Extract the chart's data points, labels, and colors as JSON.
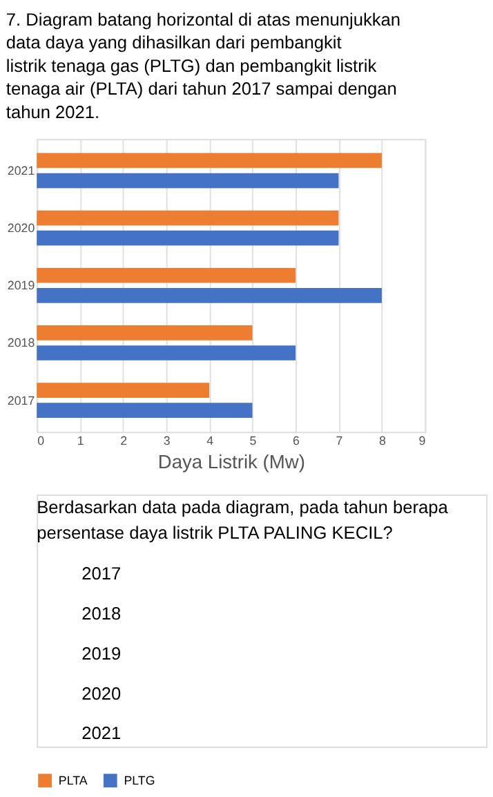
{
  "chart_data": {
    "type": "bar",
    "orientation": "horizontal",
    "title": "7. Diagram batang horizontal di atas menunjukkan data daya yang dihasilkan dari pembangkit listrik tenaga gas (PLTG) dan pembangkit listrik tenaga air (PLTA) dari tahun 2017 sampai dengan tahun 2021.",
    "categories": [
      "2021",
      "2020",
      "2019",
      "2018",
      "2017"
    ],
    "series": [
      {
        "name": "PLTA",
        "color": "#ed7d31",
        "values": [
          8,
          7,
          6,
          5,
          4
        ]
      },
      {
        "name": "PLTG",
        "color": "#4472c4",
        "values": [
          7,
          7,
          8,
          6,
          5
        ]
      }
    ],
    "xlabel": "Daya Listrik (Mw)",
    "xlim": [
      0,
      9
    ],
    "xticks": [
      0,
      1,
      2,
      3,
      4,
      5,
      6,
      7,
      8,
      9
    ],
    "grid": "x",
    "legend": "bottom",
    "annotations": [
      "Berdasarkan data pada diagram, pada tahun berapa persentase daya listrik PLTA PALING KECIL?",
      "2017",
      "2018",
      "2019",
      "2020",
      "2021"
    ]
  }
}
